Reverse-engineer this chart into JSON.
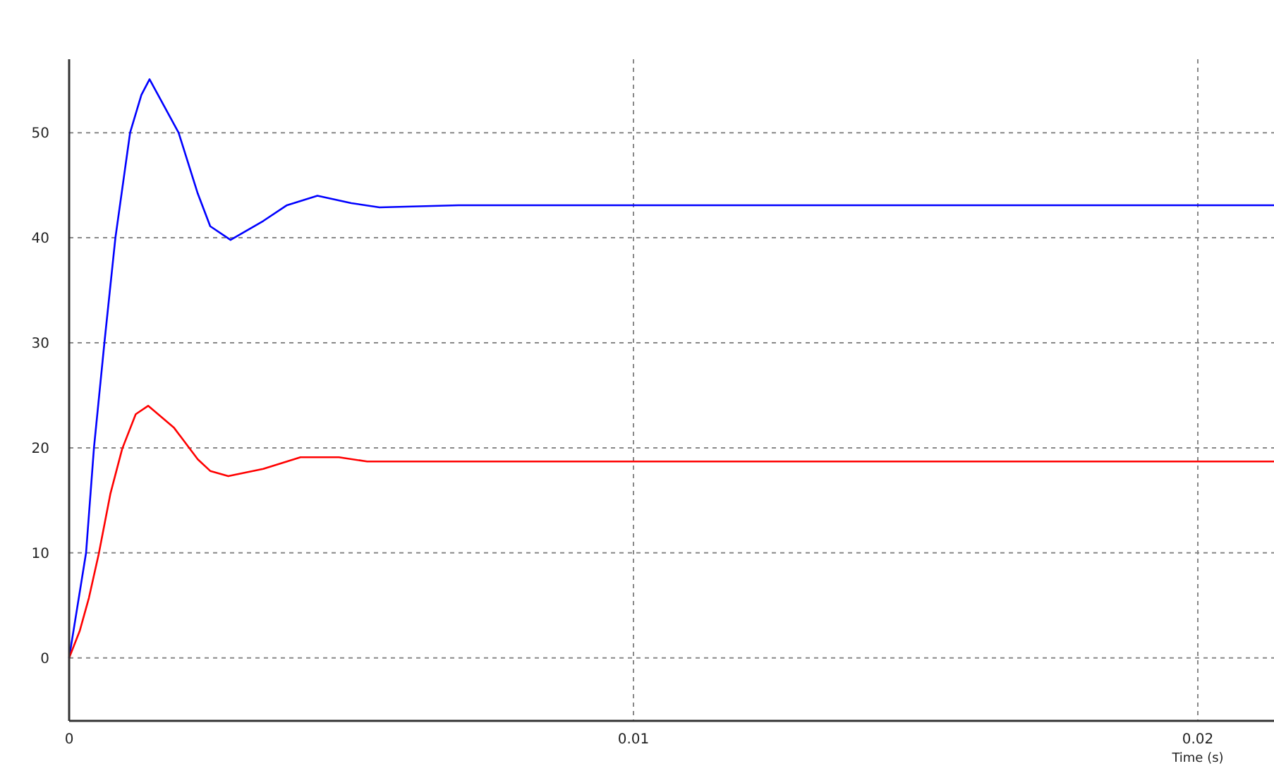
{
  "chart_data": {
    "type": "line",
    "xlabel": "Time (s)",
    "xlim": [
      0,
      0.02135
    ],
    "xticks": [
      0,
      0.01,
      0.02
    ],
    "ylim": [
      -6,
      57
    ],
    "yticks": [
      0,
      10,
      20,
      30,
      40,
      50
    ],
    "grid": true,
    "line_style": "solid",
    "marker": "none",
    "series": [
      {
        "color": "#0000ff",
        "x": [
          0,
          0.0003,
          0.00044,
          0.000625,
          0.00082,
          0.00108,
          0.00128,
          0.001425,
          0.00194,
          0.00228,
          0.0025,
          0.00286,
          0.00344,
          0.00386,
          0.0044,
          0.005,
          0.0055,
          0.0069,
          0.02135
        ],
        "values": [
          0,
          10,
          20,
          30,
          40,
          50,
          53.6,
          55.1,
          50,
          44.2,
          41.1,
          39.8,
          41.6,
          43.1,
          44,
          43.3,
          42.9,
          43.1,
          43.1
        ]
      },
      {
        "color": "#ff0000",
        "x": [
          0,
          0.00019,
          0.00035,
          0.000525,
          0.00073,
          0.00094,
          0.00118,
          0.0014,
          0.00186,
          0.00228,
          0.0025,
          0.00282,
          0.00344,
          0.0041,
          0.00478,
          0.00528,
          0.02135
        ],
        "values": [
          0,
          2.6,
          5.7,
          9.9,
          15.6,
          19.9,
          23.2,
          24,
          21.9,
          18.9,
          17.8,
          17.3,
          18,
          19.1,
          19.1,
          18.7,
          18.7
        ]
      }
    ]
  }
}
